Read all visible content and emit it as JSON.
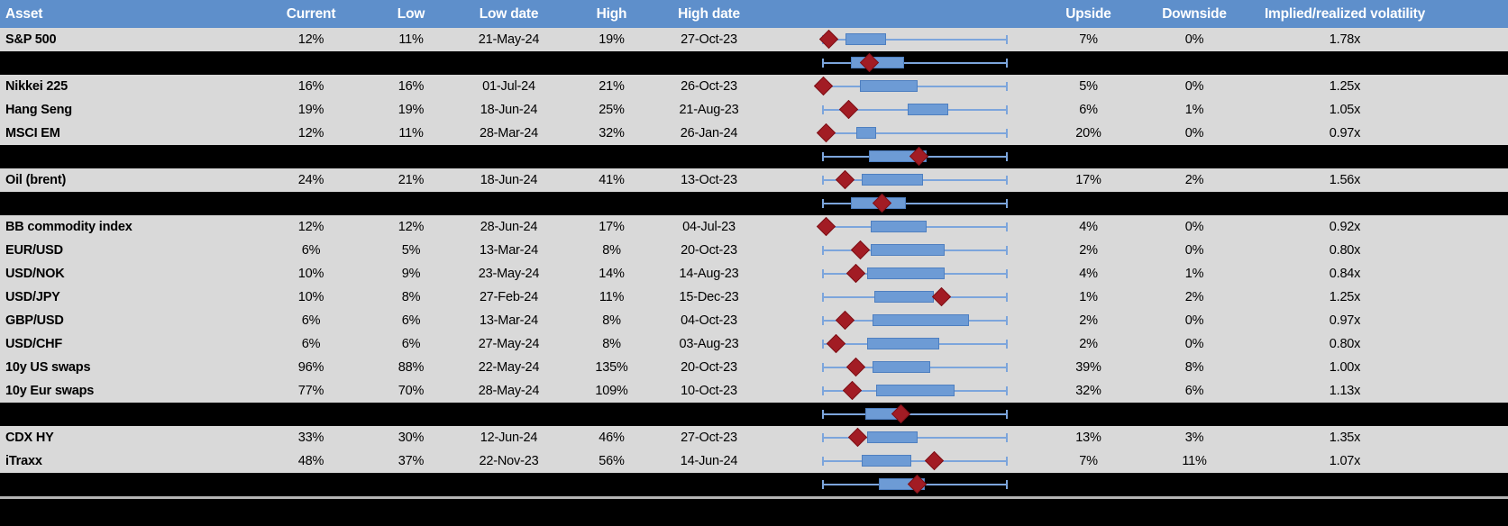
{
  "header": {
    "asset": "Asset",
    "current": "Current",
    "low": "Low",
    "low_date": "Low date",
    "high": "High",
    "high_date": "High date",
    "range_chart": "",
    "upside": "Upside",
    "downside": "Downside",
    "implied_realized": "Implied/realized volatility"
  },
  "colors": {
    "header_bg": "#5E8FCB",
    "header_text": "#FFFFFF",
    "row_bg": "#D9D9D9",
    "separator_bg": "#000000",
    "body_text": "#000000",
    "box_fill": "#6D9BD5",
    "box_border": "#4E7FC0",
    "whisker": "#7CA5DC",
    "marker_fill": "#A21C24",
    "marker_border": "#7E1218",
    "divider": "#B3B3B3"
  },
  "chart_data": {
    "type": "table",
    "columns": [
      "Asset",
      "Current",
      "Low",
      "Low date",
      "High",
      "High date",
      "Range box plot",
      "Upside",
      "Downside",
      "Implied/realized volatility"
    ],
    "boxplot_note": "Each row shows a horizontal box-and-whisker of the volatility range (whisker = full low-to-high span, normalized 0-1) with a dark-red diamond marking the current level; black separator rows show aggregate box plots.",
    "rows": [
      {
        "type": "data",
        "asset": "S&P 500",
        "current": "12%",
        "low": "11%",
        "low_date": "21-May-24",
        "high": "19%",
        "high_date": "27-Oct-23",
        "upside": "7%",
        "downside": "0%",
        "implied_realized": "1.78x",
        "boxplot": {
          "whisker": [
            0,
            1
          ],
          "box": [
            0.12,
            0.34
          ],
          "marker": 0.03
        }
      },
      {
        "type": "separator",
        "boxplot": {
          "whisker": [
            0,
            1
          ],
          "box": [
            0.15,
            0.44
          ],
          "marker": 0.25
        }
      },
      {
        "type": "data",
        "asset": "Nikkei 225",
        "current": "16%",
        "low": "16%",
        "low_date": "01-Jul-24",
        "high": "21%",
        "high_date": "26-Oct-23",
        "upside": "5%",
        "downside": "0%",
        "implied_realized": "1.25x",
        "boxplot": {
          "whisker": [
            0,
            1
          ],
          "box": [
            0.2,
            0.51
          ],
          "marker": 0.0
        }
      },
      {
        "type": "data",
        "asset": "Hang Seng",
        "current": "19%",
        "low": "19%",
        "low_date": "18-Jun-24",
        "high": "25%",
        "high_date": "21-Aug-23",
        "upside": "6%",
        "downside": "1%",
        "implied_realized": "1.05x",
        "boxplot": {
          "whisker": [
            0,
            1
          ],
          "box": [
            0.46,
            0.68
          ],
          "marker": 0.14
        }
      },
      {
        "type": "data",
        "asset": "MSCI EM",
        "current": "12%",
        "low": "11%",
        "low_date": "28-Mar-24",
        "high": "32%",
        "high_date": "26-Jan-24",
        "upside": "20%",
        "downside": "0%",
        "implied_realized": "0.97x",
        "boxplot": {
          "whisker": [
            0,
            1
          ],
          "box": [
            0.18,
            0.29
          ],
          "marker": 0.015
        }
      },
      {
        "type": "separator",
        "boxplot": {
          "whisker": [
            0,
            1
          ],
          "box": [
            0.25,
            0.56
          ],
          "marker": 0.52
        }
      },
      {
        "type": "data",
        "asset": "Oil (brent)",
        "current": "24%",
        "low": "21%",
        "low_date": "18-Jun-24",
        "high": "41%",
        "high_date": "13-Oct-23",
        "upside": "17%",
        "downside": "2%",
        "implied_realized": "1.56x",
        "boxplot": {
          "whisker": [
            0,
            1
          ],
          "box": [
            0.21,
            0.54
          ],
          "marker": 0.12
        }
      },
      {
        "type": "separator",
        "boxplot": {
          "whisker": [
            0,
            1
          ],
          "box": [
            0.15,
            0.45
          ],
          "marker": 0.32
        }
      },
      {
        "type": "data",
        "asset": "BB commodity index",
        "current": "12%",
        "low": "12%",
        "low_date": "28-Jun-24",
        "high": "17%",
        "high_date": "04-Jul-23",
        "upside": "4%",
        "downside": "0%",
        "implied_realized": "0.92x",
        "boxplot": {
          "whisker": [
            0,
            1
          ],
          "box": [
            0.26,
            0.56
          ],
          "marker": 0.015
        }
      },
      {
        "type": "data",
        "asset": "EUR/USD",
        "current": "6%",
        "low": "5%",
        "low_date": "13-Mar-24",
        "high": "8%",
        "high_date": "20-Oct-23",
        "upside": "2%",
        "downside": "0%",
        "implied_realized": "0.80x",
        "boxplot": {
          "whisker": [
            0,
            1
          ],
          "box": [
            0.26,
            0.66
          ],
          "marker": 0.2
        }
      },
      {
        "type": "data",
        "asset": "USD/NOK",
        "current": "10%",
        "low": "9%",
        "low_date": "23-May-24",
        "high": "14%",
        "high_date": "14-Aug-23",
        "upside": "4%",
        "downside": "1%",
        "implied_realized": "0.84x",
        "boxplot": {
          "whisker": [
            0,
            1
          ],
          "box": [
            0.24,
            0.66
          ],
          "marker": 0.18
        }
      },
      {
        "type": "data",
        "asset": "USD/JPY",
        "current": "10%",
        "low": "8%",
        "low_date": "27-Feb-24",
        "high": "11%",
        "high_date": "15-Dec-23",
        "upside": "1%",
        "downside": "2%",
        "implied_realized": "1.25x",
        "boxplot": {
          "whisker": [
            0,
            1
          ],
          "box": [
            0.28,
            0.6
          ],
          "marker": 0.64
        }
      },
      {
        "type": "data",
        "asset": "GBP/USD",
        "current": "6%",
        "low": "6%",
        "low_date": "13-Mar-24",
        "high": "8%",
        "high_date": "04-Oct-23",
        "upside": "2%",
        "downside": "0%",
        "implied_realized": "0.97x",
        "boxplot": {
          "whisker": [
            0,
            1
          ],
          "box": [
            0.27,
            0.79
          ],
          "marker": 0.12
        }
      },
      {
        "type": "data",
        "asset": "USD/CHF",
        "current": "6%",
        "low": "6%",
        "low_date": "27-May-24",
        "high": "8%",
        "high_date": "03-Aug-23",
        "upside": "2%",
        "downside": "0%",
        "implied_realized": "0.80x",
        "boxplot": {
          "whisker": [
            0,
            1
          ],
          "box": [
            0.24,
            0.63
          ],
          "marker": 0.07
        }
      },
      {
        "type": "data",
        "asset": "10y US swaps",
        "current": "96%",
        "low": "88%",
        "low_date": "22-May-24",
        "high": "135%",
        "high_date": "20-Oct-23",
        "upside": "39%",
        "downside": "8%",
        "implied_realized": "1.00x",
        "boxplot": {
          "whisker": [
            0,
            1
          ],
          "box": [
            0.27,
            0.58
          ],
          "marker": 0.18
        }
      },
      {
        "type": "data",
        "asset": "10y Eur swaps",
        "current": "77%",
        "low": "70%",
        "low_date": "28-May-24",
        "high": "109%",
        "high_date": "10-Oct-23",
        "upside": "32%",
        "downside": "6%",
        "implied_realized": "1.13x",
        "boxplot": {
          "whisker": [
            0,
            1
          ],
          "box": [
            0.29,
            0.71
          ],
          "marker": 0.16
        }
      },
      {
        "type": "separator",
        "boxplot": {
          "whisker": [
            0,
            1
          ],
          "box": [
            0.23,
            0.42
          ],
          "marker": 0.42
        }
      },
      {
        "type": "data",
        "asset": "CDX HY",
        "current": "33%",
        "low": "30%",
        "low_date": "12-Jun-24",
        "high": "46%",
        "high_date": "27-Oct-23",
        "upside": "13%",
        "downside": "3%",
        "implied_realized": "1.35x",
        "boxplot": {
          "whisker": [
            0,
            1
          ],
          "box": [
            0.24,
            0.51
          ],
          "marker": 0.19
        }
      },
      {
        "type": "data",
        "asset": "iTraxx",
        "current": "48%",
        "low": "37%",
        "low_date": "22-Nov-23",
        "high": "56%",
        "high_date": "14-Jun-24",
        "upside": "7%",
        "downside": "11%",
        "implied_realized": "1.07x",
        "boxplot": {
          "whisker": [
            0,
            1
          ],
          "box": [
            0.21,
            0.48
          ],
          "marker": 0.6
        }
      },
      {
        "type": "separator",
        "boxplot": {
          "whisker": [
            0,
            1
          ],
          "box": [
            0.3,
            0.55
          ],
          "marker": 0.51
        }
      }
    ]
  }
}
